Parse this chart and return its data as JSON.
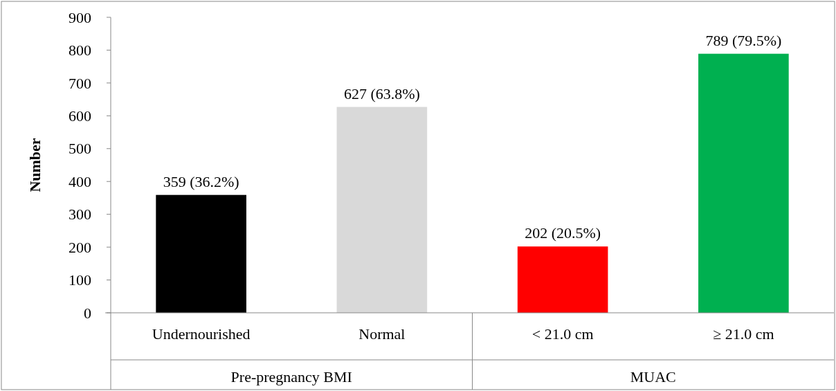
{
  "chart_data": {
    "type": "bar",
    "ylabel": "Number",
    "categories": [
      "Undernourished",
      "Normal",
      "< 21.0 cm",
      "≥ 21.0 cm"
    ],
    "values": [
      359,
      627,
      202,
      789
    ],
    "colors": [
      "#000000",
      "#d9d9d9",
      "#ff0000",
      "#00b050"
    ],
    "value_labels": [
      "359 (36.2%)",
      "627 (63.8%)",
      "202 (20.5%)",
      "789 (79.5%)"
    ],
    "ylim": [
      0,
      900
    ],
    "yticks": [
      0,
      100,
      200,
      300,
      400,
      500,
      600,
      700,
      800,
      900
    ],
    "annotations": [
      "Pre-pregnancy BMI",
      "MUAC"
    ],
    "grid": false
  }
}
